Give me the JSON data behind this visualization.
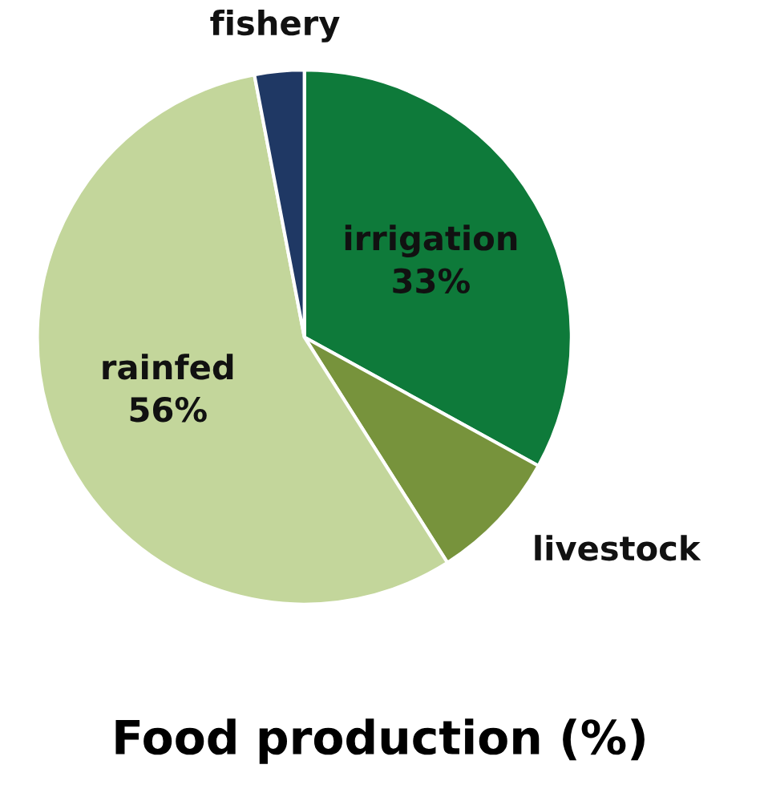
{
  "chart_data": {
    "type": "pie",
    "title": "Food production (%)",
    "categories": [
      "irrigation",
      "livestock",
      "rainfed",
      "fishery"
    ],
    "values": [
      33,
      8,
      56,
      3
    ],
    "value_labels": [
      "33%",
      null,
      "56%",
      null
    ],
    "colors": [
      "#0e7a3a",
      "#77933c",
      "#c3d69b",
      "#1f3864"
    ]
  }
}
